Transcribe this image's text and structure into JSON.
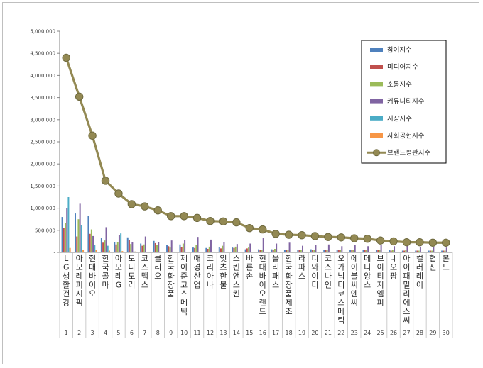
{
  "chart_data": {
    "type": "bar",
    "yaxis": {
      "ticks": [
        "5,000,000",
        "4,500,000",
        "4,000,000",
        "3,500,000",
        "3,000,000",
        "2,500,000",
        "2,000,000",
        "1,500,000",
        "1,000,000",
        "500,000",
        "-"
      ],
      "ylim": [
        0,
        5000000
      ],
      "step": 500000
    },
    "grid": false,
    "legend_position": "top-right",
    "categories": [
      "LG생활건강",
      "아모레퍼시픽",
      "현대바이오",
      "한국콜마",
      "아모레G",
      "토니모리",
      "코스맥스",
      "클리오",
      "한국화장품",
      "제이준코스메틱",
      "애경산업",
      "코리아나",
      "잇츠한불",
      "스킨앤스킨",
      "바른손",
      "현대바이오랜드",
      "올리패스",
      "한국화장품제조",
      "라파스",
      "디와이디",
      "코스나인",
      "오가닉티코스메틱",
      "에이블씨엔씨",
      "메디앙스",
      "브이티지엠피",
      "네오팜",
      "아이패밀리에스씨",
      "컬러레이",
      "협진",
      "본느"
    ],
    "ranks": [
      "1",
      "2",
      "3",
      "4",
      "5",
      "6",
      "7",
      "8",
      "9",
      "10",
      "11",
      "12",
      "13",
      "14",
      "15",
      "16",
      "17",
      "18",
      "19",
      "20",
      "21",
      "22",
      "23",
      "24",
      "25",
      "26",
      "27",
      "28",
      "29",
      "30"
    ],
    "series": [
      {
        "name": "참여지수",
        "color": "#4f81bd",
        "kind": "bar",
        "values": [
          800000,
          880000,
          820000,
          320000,
          240000,
          340000,
          200000,
          260000,
          160000,
          180000,
          110000,
          100000,
          120000,
          110000,
          70000,
          70000,
          70000,
          60000,
          60000,
          70000,
          60000,
          50000,
          60000,
          60000,
          50000,
          50000,
          40000,
          40000,
          40000,
          40000
        ]
      },
      {
        "name": "미디어지수",
        "color": "#c0504d",
        "kind": "bar",
        "values": [
          560000,
          360000,
          420000,
          220000,
          180000,
          280000,
          150000,
          210000,
          140000,
          120000,
          100000,
          80000,
          90000,
          100000,
          90000,
          60000,
          60000,
          50000,
          50000,
          50000,
          60000,
          60000,
          50000,
          50000,
          50000,
          40000,
          40000,
          40000,
          40000,
          40000
        ]
      },
      {
        "name": "소통지수",
        "color": "#9bbb59",
        "kind": "bar",
        "values": [
          660000,
          750000,
          520000,
          270000,
          240000,
          190000,
          180000,
          170000,
          110000,
          200000,
          160000,
          130000,
          150000,
          130000,
          110000,
          50000,
          80000,
          60000,
          60000,
          60000,
          50000,
          50000,
          60000,
          50000,
          50000,
          50000,
          50000,
          40000,
          40000,
          40000
        ]
      },
      {
        "name": "커뮤니티지수",
        "color": "#8064a2",
        "kind": "bar",
        "values": [
          1000000,
          1100000,
          370000,
          570000,
          390000,
          240000,
          360000,
          240000,
          270000,
          280000,
          350000,
          290000,
          240000,
          190000,
          200000,
          320000,
          200000,
          220000,
          150000,
          160000,
          180000,
          140000,
          160000,
          140000,
          170000,
          140000,
          150000,
          130000,
          120000,
          110000
        ]
      },
      {
        "name": "시장지수",
        "color": "#4bacc6",
        "kind": "bar",
        "values": [
          1250000,
          620000,
          160000,
          150000,
          430000,
          20000,
          0,
          0,
          0,
          0,
          0,
          0,
          0,
          0,
          0,
          0,
          0,
          0,
          0,
          0,
          0,
          0,
          0,
          0,
          0,
          0,
          0,
          0,
          0,
          0
        ]
      },
      {
        "name": "사회공헌지수",
        "color": "#f79646",
        "kind": "bar",
        "values": [
          100000,
          60000,
          60000,
          40000,
          30000,
          20000,
          10000,
          10000,
          10000,
          10000,
          10000,
          10000,
          10000,
          10000,
          10000,
          10000,
          10000,
          10000,
          10000,
          10000,
          10000,
          10000,
          10000,
          10000,
          10000,
          10000,
          10000,
          10000,
          10000,
          10000
        ]
      },
      {
        "name": "브랜드평판지수",
        "color": "#938953",
        "kind": "line",
        "values": [
          4400000,
          3520000,
          2640000,
          1620000,
          1330000,
          1090000,
          1040000,
          950000,
          820000,
          820000,
          780000,
          710000,
          700000,
          680000,
          550000,
          520000,
          420000,
          400000,
          390000,
          370000,
          350000,
          340000,
          320000,
          310000,
          270000,
          250000,
          230000,
          230000,
          220000,
          220000
        ]
      }
    ]
  }
}
